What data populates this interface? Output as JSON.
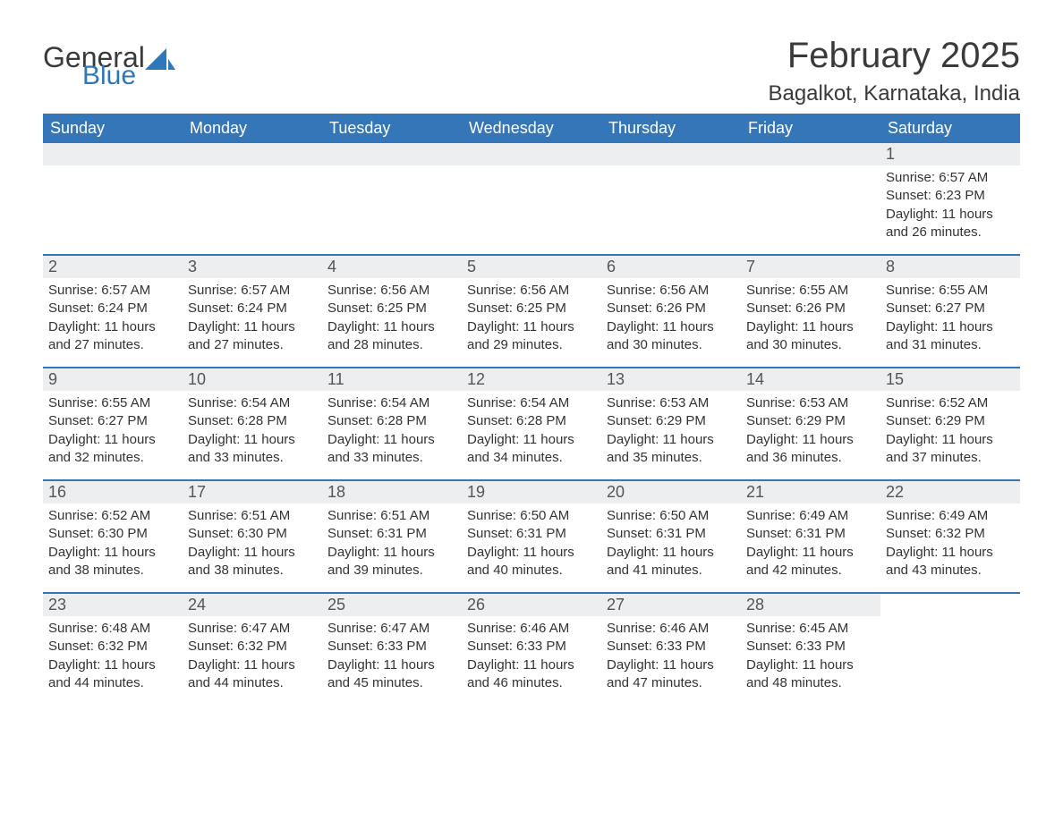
{
  "brand": {
    "word1": "General",
    "word2": "Blue",
    "accent": "#2f77bb"
  },
  "title": "February 2025",
  "subtitle": "Bagalkot, Karnataka, India",
  "colors": {
    "header_bg": "#3576b9",
    "header_text": "#ffffff",
    "daynum_bg": "#eceeef",
    "daynum_text": "#555555",
    "body_text": "#333333",
    "rule": "#3576b9",
    "page_bg": "#ffffff"
  },
  "weekdays": [
    "Sunday",
    "Monday",
    "Tuesday",
    "Wednesday",
    "Thursday",
    "Friday",
    "Saturday"
  ],
  "weeks": [
    [
      {
        "day": ""
      },
      {
        "day": ""
      },
      {
        "day": ""
      },
      {
        "day": ""
      },
      {
        "day": ""
      },
      {
        "day": ""
      },
      {
        "day": "1",
        "sunrise": "Sunrise: 6:57 AM",
        "sunset": "Sunset: 6:23 PM",
        "d1": "Daylight: 11 hours",
        "d2": "and 26 minutes."
      }
    ],
    [
      {
        "day": "2",
        "sunrise": "Sunrise: 6:57 AM",
        "sunset": "Sunset: 6:24 PM",
        "d1": "Daylight: 11 hours",
        "d2": "and 27 minutes."
      },
      {
        "day": "3",
        "sunrise": "Sunrise: 6:57 AM",
        "sunset": "Sunset: 6:24 PM",
        "d1": "Daylight: 11 hours",
        "d2": "and 27 minutes."
      },
      {
        "day": "4",
        "sunrise": "Sunrise: 6:56 AM",
        "sunset": "Sunset: 6:25 PM",
        "d1": "Daylight: 11 hours",
        "d2": "and 28 minutes."
      },
      {
        "day": "5",
        "sunrise": "Sunrise: 6:56 AM",
        "sunset": "Sunset: 6:25 PM",
        "d1": "Daylight: 11 hours",
        "d2": "and 29 minutes."
      },
      {
        "day": "6",
        "sunrise": "Sunrise: 6:56 AM",
        "sunset": "Sunset: 6:26 PM",
        "d1": "Daylight: 11 hours",
        "d2": "and 30 minutes."
      },
      {
        "day": "7",
        "sunrise": "Sunrise: 6:55 AM",
        "sunset": "Sunset: 6:26 PM",
        "d1": "Daylight: 11 hours",
        "d2": "and 30 minutes."
      },
      {
        "day": "8",
        "sunrise": "Sunrise: 6:55 AM",
        "sunset": "Sunset: 6:27 PM",
        "d1": "Daylight: 11 hours",
        "d2": "and 31 minutes."
      }
    ],
    [
      {
        "day": "9",
        "sunrise": "Sunrise: 6:55 AM",
        "sunset": "Sunset: 6:27 PM",
        "d1": "Daylight: 11 hours",
        "d2": "and 32 minutes."
      },
      {
        "day": "10",
        "sunrise": "Sunrise: 6:54 AM",
        "sunset": "Sunset: 6:28 PM",
        "d1": "Daylight: 11 hours",
        "d2": "and 33 minutes."
      },
      {
        "day": "11",
        "sunrise": "Sunrise: 6:54 AM",
        "sunset": "Sunset: 6:28 PM",
        "d1": "Daylight: 11 hours",
        "d2": "and 33 minutes."
      },
      {
        "day": "12",
        "sunrise": "Sunrise: 6:54 AM",
        "sunset": "Sunset: 6:28 PM",
        "d1": "Daylight: 11 hours",
        "d2": "and 34 minutes."
      },
      {
        "day": "13",
        "sunrise": "Sunrise: 6:53 AM",
        "sunset": "Sunset: 6:29 PM",
        "d1": "Daylight: 11 hours",
        "d2": "and 35 minutes."
      },
      {
        "day": "14",
        "sunrise": "Sunrise: 6:53 AM",
        "sunset": "Sunset: 6:29 PM",
        "d1": "Daylight: 11 hours",
        "d2": "and 36 minutes."
      },
      {
        "day": "15",
        "sunrise": "Sunrise: 6:52 AM",
        "sunset": "Sunset: 6:29 PM",
        "d1": "Daylight: 11 hours",
        "d2": "and 37 minutes."
      }
    ],
    [
      {
        "day": "16",
        "sunrise": "Sunrise: 6:52 AM",
        "sunset": "Sunset: 6:30 PM",
        "d1": "Daylight: 11 hours",
        "d2": "and 38 minutes."
      },
      {
        "day": "17",
        "sunrise": "Sunrise: 6:51 AM",
        "sunset": "Sunset: 6:30 PM",
        "d1": "Daylight: 11 hours",
        "d2": "and 38 minutes."
      },
      {
        "day": "18",
        "sunrise": "Sunrise: 6:51 AM",
        "sunset": "Sunset: 6:31 PM",
        "d1": "Daylight: 11 hours",
        "d2": "and 39 minutes."
      },
      {
        "day": "19",
        "sunrise": "Sunrise: 6:50 AM",
        "sunset": "Sunset: 6:31 PM",
        "d1": "Daylight: 11 hours",
        "d2": "and 40 minutes."
      },
      {
        "day": "20",
        "sunrise": "Sunrise: 6:50 AM",
        "sunset": "Sunset: 6:31 PM",
        "d1": "Daylight: 11 hours",
        "d2": "and 41 minutes."
      },
      {
        "day": "21",
        "sunrise": "Sunrise: 6:49 AM",
        "sunset": "Sunset: 6:31 PM",
        "d1": "Daylight: 11 hours",
        "d2": "and 42 minutes."
      },
      {
        "day": "22",
        "sunrise": "Sunrise: 6:49 AM",
        "sunset": "Sunset: 6:32 PM",
        "d1": "Daylight: 11 hours",
        "d2": "and 43 minutes."
      }
    ],
    [
      {
        "day": "23",
        "sunrise": "Sunrise: 6:48 AM",
        "sunset": "Sunset: 6:32 PM",
        "d1": "Daylight: 11 hours",
        "d2": "and 44 minutes."
      },
      {
        "day": "24",
        "sunrise": "Sunrise: 6:47 AM",
        "sunset": "Sunset: 6:32 PM",
        "d1": "Daylight: 11 hours",
        "d2": "and 44 minutes."
      },
      {
        "day": "25",
        "sunrise": "Sunrise: 6:47 AM",
        "sunset": "Sunset: 6:33 PM",
        "d1": "Daylight: 11 hours",
        "d2": "and 45 minutes."
      },
      {
        "day": "26",
        "sunrise": "Sunrise: 6:46 AM",
        "sunset": "Sunset: 6:33 PM",
        "d1": "Daylight: 11 hours",
        "d2": "and 46 minutes."
      },
      {
        "day": "27",
        "sunrise": "Sunrise: 6:46 AM",
        "sunset": "Sunset: 6:33 PM",
        "d1": "Daylight: 11 hours",
        "d2": "and 47 minutes."
      },
      {
        "day": "28",
        "sunrise": "Sunrise: 6:45 AM",
        "sunset": "Sunset: 6:33 PM",
        "d1": "Daylight: 11 hours",
        "d2": "and 48 minutes."
      },
      {
        "day": ""
      }
    ]
  ]
}
